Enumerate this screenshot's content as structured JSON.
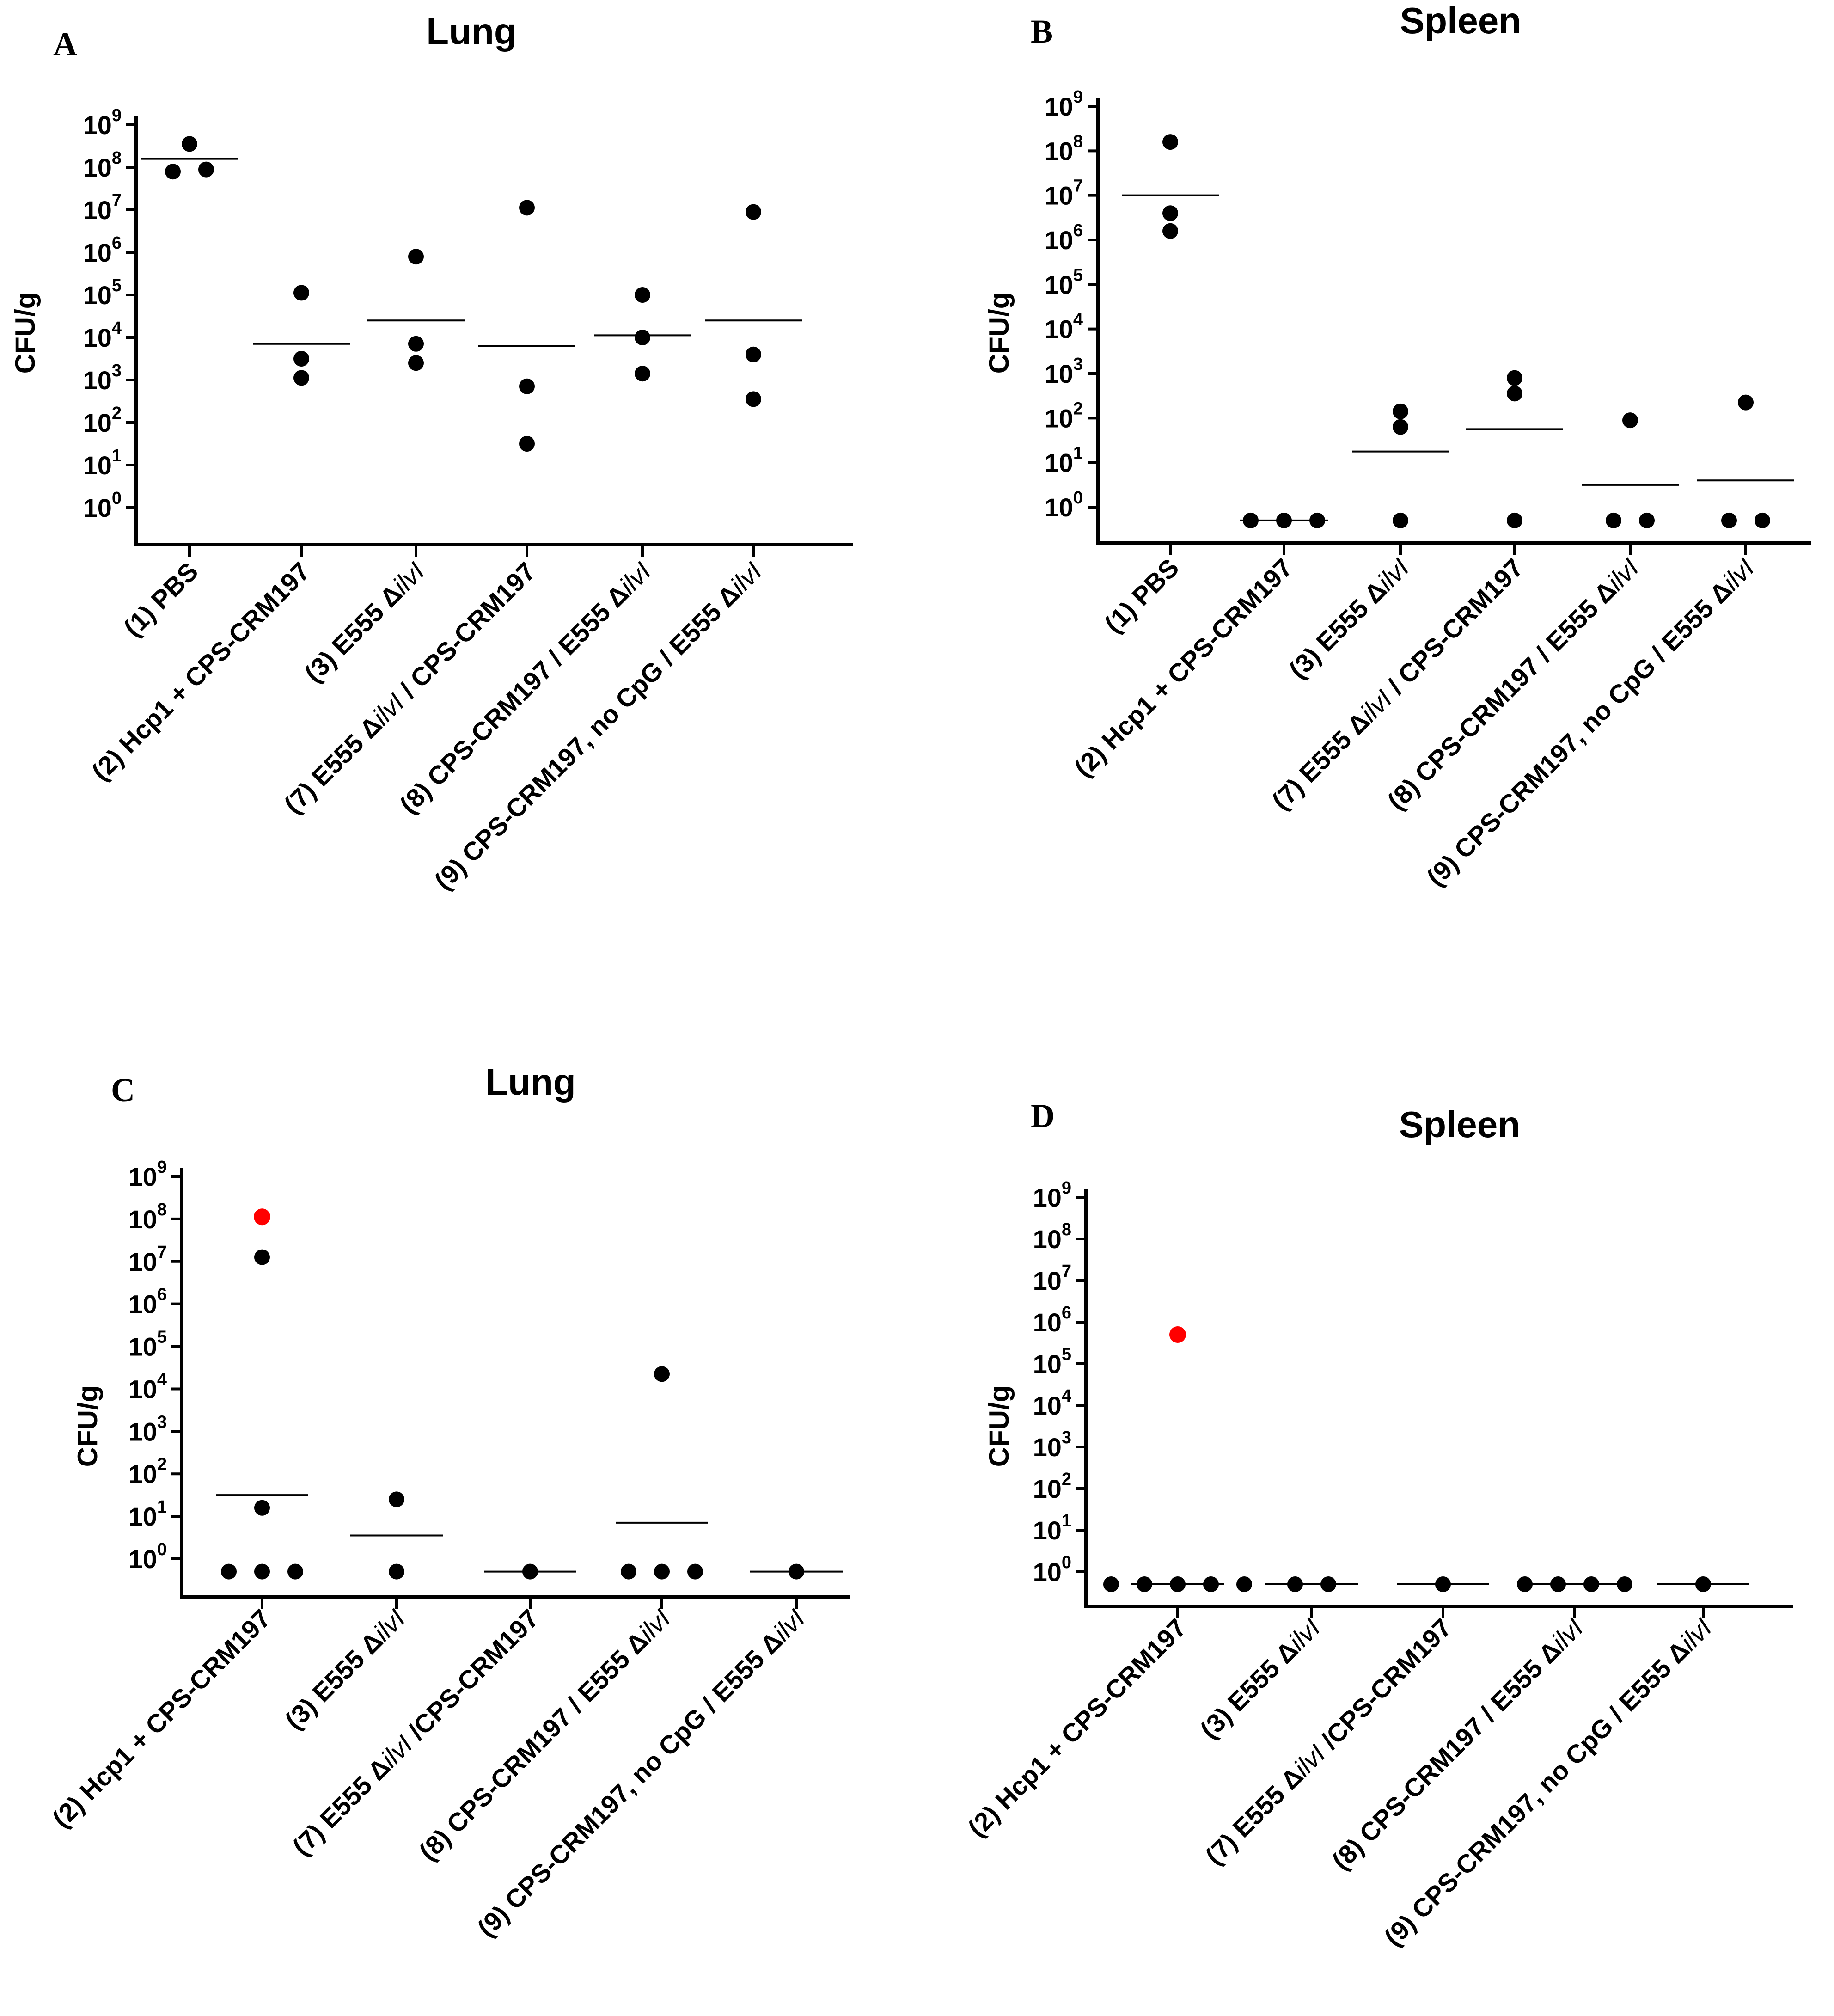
{
  "figure": {
    "y_label": "CFU/g",
    "y_tick_base": "10",
    "y_tick_exponents": [
      "0",
      "1",
      "2",
      "3",
      "4",
      "5",
      "6",
      "7",
      "8",
      "9"
    ]
  },
  "chart_data": [
    {
      "panel": "A",
      "type": "scatter",
      "title": "Lung",
      "ylabel": "CFU/g",
      "yscale": "log10",
      "ylim_log10": [
        -0.8,
        9
      ],
      "categories": [
        {
          "prefix": "(1) PBS",
          "italic": "",
          "suffix": ""
        },
        {
          "prefix": "(2) Hcp1 + CPS-CRM197",
          "italic": "",
          "suffix": ""
        },
        {
          "prefix": "(3) E555 Δ",
          "italic": "ilvI",
          "suffix": ""
        },
        {
          "prefix": "(7) E555 Δ",
          "italic": "ilvI",
          "suffix": " / CPS-CRM197"
        },
        {
          "prefix": "(8) CPS-CRM197 / E555 Δ",
          "italic": "ilvI",
          "suffix": ""
        },
        {
          "prefix": "(9) CPS-CRM197, no CpG / E555 Δ",
          "italic": "ilvI",
          "suffix": ""
        }
      ],
      "points_log10": [
        [
          8.55,
          7.9,
          7.95
        ],
        [
          5.05,
          3.5,
          3.05
        ],
        [
          5.9,
          3.85,
          3.4
        ],
        [
          7.05,
          2.85,
          1.5
        ],
        [
          5.0,
          4.0,
          3.15
        ],
        [
          6.95,
          3.6,
          2.55
        ]
      ],
      "red_points": [],
      "median_log10": [
        8.2,
        3.85,
        4.4,
        3.8,
        4.05,
        4.4
      ],
      "median_halfwidth": [
        0.42,
        0.42,
        0.42,
        0.42,
        0.42,
        0.42
      ]
    },
    {
      "panel": "B",
      "type": "scatter",
      "title": "Spleen",
      "ylabel": "CFU/g",
      "yscale": "log10",
      "ylim_log10": [
        -0.8,
        9
      ],
      "categories": [
        {
          "prefix": "(1) PBS",
          "italic": "",
          "suffix": ""
        },
        {
          "prefix": "(2) Hcp1 + CPS-CRM197",
          "italic": "",
          "suffix": ""
        },
        {
          "prefix": "(3) E555 Δ",
          "italic": "ilvI",
          "suffix": ""
        },
        {
          "prefix": "(7) E555 Δ",
          "italic": "ilvI",
          "suffix": " / CPS-CRM197"
        },
        {
          "prefix": "(8) CPS-CRM197 / E555 Δ",
          "italic": "ilvI",
          "suffix": ""
        },
        {
          "prefix": "(9) CPS-CRM197, no CpG / E555 Δ",
          "italic": "ilvI",
          "suffix": ""
        }
      ],
      "points_log10": [
        [
          8.2,
          6.6,
          6.2
        ],
        [
          -0.3,
          -0.3,
          -0.3
        ],
        [
          2.15,
          1.8,
          -0.3
        ],
        [
          2.9,
          2.55,
          -0.3
        ],
        [
          1.95,
          -0.3,
          -0.3
        ],
        [
          2.35,
          -0.3,
          -0.3
        ]
      ],
      "red_points": [],
      "median_log10": [
        7.0,
        -0.3,
        1.25,
        1.75,
        0.5,
        0.6
      ],
      "median_halfwidth": [
        0.42,
        0.38,
        0.42,
        0.42,
        0.42,
        0.42
      ]
    },
    {
      "panel": "C",
      "type": "scatter",
      "title": "Lung",
      "ylabel": "CFU/g",
      "yscale": "log10",
      "ylim_log10": [
        -0.8,
        9
      ],
      "categories": [
        {
          "prefix": "(2) Hcp1 + CPS-CRM197",
          "italic": "",
          "suffix": ""
        },
        {
          "prefix": "(3) E555 Δ",
          "italic": "ilvI",
          "suffix": ""
        },
        {
          "prefix": "(7) E555 Δ",
          "italic": "ilvI",
          "suffix": " /CPS-CRM197"
        },
        {
          "prefix": "(8) CPS-CRM197 / E555 Δ",
          "italic": "ilvI",
          "suffix": ""
        },
        {
          "prefix": "(9) CPS-CRM197, no CpG / E555 Δ",
          "italic": "ilvI",
          "suffix": ""
        }
      ],
      "points_log10": [
        [
          7.1,
          1.2,
          -0.3,
          -0.3,
          -0.3
        ],
        [
          1.4,
          -0.3
        ],
        [
          -0.3
        ],
        [
          4.35,
          -0.3,
          -0.3,
          -0.3
        ],
        [
          -0.3
        ]
      ],
      "red_points": [
        {
          "category": 0,
          "y_log10": 8.05
        }
      ],
      "median_log10": [
        1.5,
        0.55,
        -0.3,
        0.85,
        -0.3
      ],
      "median_halfwidth": [
        0.4,
        0.4,
        0.4,
        0.4,
        0.4
      ]
    },
    {
      "panel": "D",
      "type": "scatter",
      "title": "Spleen",
      "ylabel": "CFU/g",
      "yscale": "log10",
      "ylim_log10": [
        -0.8,
        9
      ],
      "categories": [
        {
          "prefix": "(2) Hcp1 + CPS-CRM197",
          "italic": "",
          "suffix": ""
        },
        {
          "prefix": "(3) E555 Δ",
          "italic": "ilvI",
          "suffix": ""
        },
        {
          "prefix": "(7) E555 Δ",
          "italic": "ilvI",
          "suffix": " /CPS-CRM197"
        },
        {
          "prefix": "(8) CPS-CRM197 / E555 Δ",
          "italic": "ilvI",
          "suffix": ""
        },
        {
          "prefix": "(9) CPS-CRM197, no CpG / E555 Δ",
          "italic": "ilvI",
          "suffix": ""
        }
      ],
      "points_log10": [
        [
          -0.3,
          -0.3,
          -0.3,
          -0.3,
          -0.3
        ],
        [
          -0.3,
          -0.3
        ],
        [
          -0.3
        ],
        [
          -0.3,
          -0.3,
          -0.3,
          -0.3
        ],
        [
          -0.3
        ]
      ],
      "red_points": [
        {
          "category": 0,
          "y_log10": 5.7
        }
      ],
      "median_log10": [
        -0.3,
        -0.3,
        -0.3,
        -0.3,
        -0.3
      ],
      "median_halfwidth": [
        0.4,
        0.4,
        0.4,
        0.4,
        0.4
      ]
    }
  ]
}
